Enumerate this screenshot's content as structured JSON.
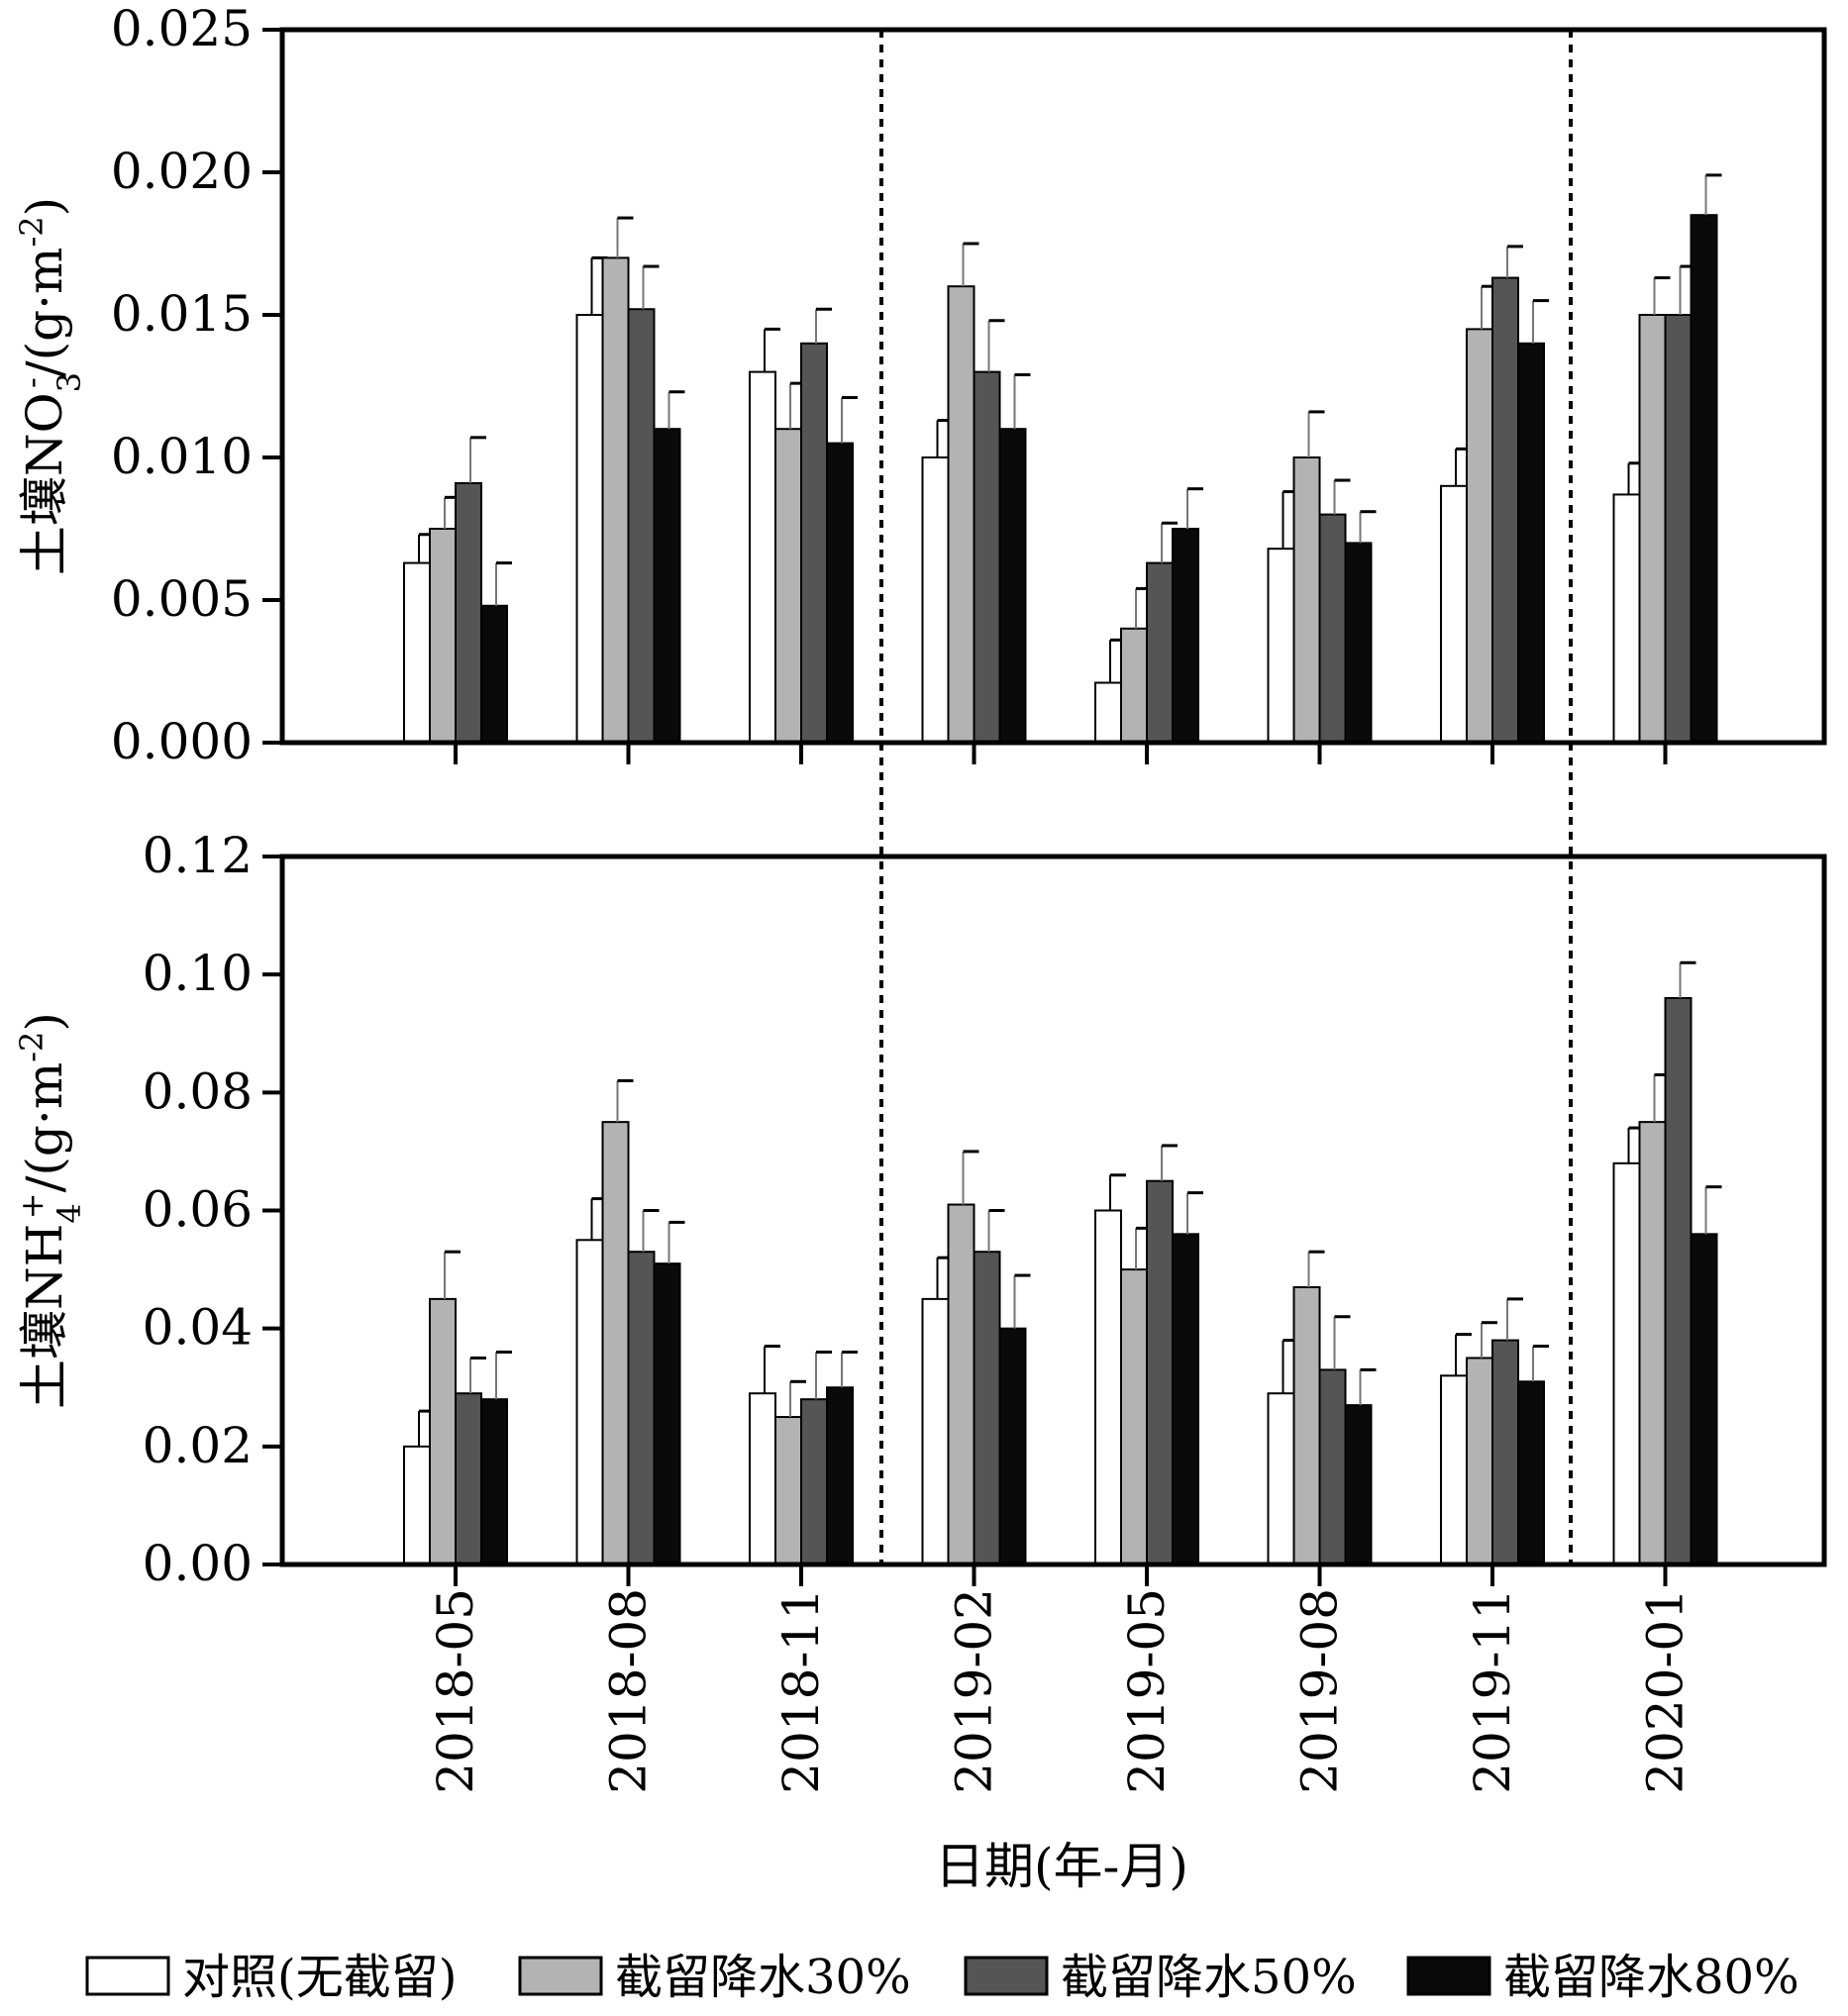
{
  "chart_data": [
    {
      "type": "bar",
      "ylabel": "土壤NO₃⁻/(g·m⁻²)",
      "ylabel_parts": {
        "prefix": "土壤NO",
        "sub": "3",
        "sup": "-",
        "suffix": "/(g·m",
        "unit_sup": "-2",
        "close": ")"
      },
      "ylim": [
        0,
        0.025
      ],
      "yticks": [
        "0.000",
        "0.005",
        "0.010",
        "0.015",
        "0.020",
        "0.025"
      ],
      "categories": [
        "2018-05",
        "2018-08",
        "2018-11",
        "2019-02",
        "2019-05",
        "2019-08",
        "2019-11",
        "2020-01"
      ],
      "series": [
        {
          "name": "对照(无截留)",
          "values": [
            0.0063,
            0.015,
            0.013,
            0.01,
            0.0021,
            0.0068,
            0.009,
            0.0087
          ],
          "errors": [
            0.001,
            0.002,
            0.0015,
            0.0013,
            0.0015,
            0.002,
            0.0013,
            0.0011
          ]
        },
        {
          "name": "截留降水30%",
          "values": [
            0.0075,
            0.017,
            0.011,
            0.016,
            0.004,
            0.01,
            0.0145,
            0.015
          ],
          "errors": [
            0.0011,
            0.0014,
            0.0016,
            0.0015,
            0.0014,
            0.0016,
            0.0015,
            0.0013
          ]
        },
        {
          "name": "截留降水50%",
          "values": [
            0.0091,
            0.0152,
            0.014,
            0.013,
            0.0063,
            0.008,
            0.0163,
            0.015
          ],
          "errors": [
            0.0016,
            0.0015,
            0.0012,
            0.0018,
            0.0014,
            0.0012,
            0.0011,
            0.0017
          ]
        },
        {
          "name": "截留降水80%",
          "values": [
            0.0048,
            0.011,
            0.0105,
            0.011,
            0.0075,
            0.007,
            0.014,
            0.0185
          ],
          "errors": [
            0.0015,
            0.0013,
            0.0016,
            0.0019,
            0.0014,
            0.0011,
            0.0015,
            0.0014
          ]
        }
      ],
      "dividers_after": [
        "2018-11",
        "2019-11"
      ]
    },
    {
      "type": "bar",
      "ylabel": "土壤NH₄⁺/(g·m⁻²)",
      "ylabel_parts": {
        "prefix": "土壤NH",
        "sub": "4",
        "sup": "+",
        "suffix": "/(g·m",
        "unit_sup": "-2",
        "close": ")"
      },
      "ylim": [
        0,
        0.12
      ],
      "yticks": [
        "0.00",
        "0.02",
        "0.04",
        "0.06",
        "0.08",
        "0.10",
        "0.12"
      ],
      "xlabel": "日期(年-月)",
      "categories": [
        "2018-05",
        "2018-08",
        "2018-11",
        "2019-02",
        "2019-05",
        "2019-08",
        "2019-11",
        "2020-01"
      ],
      "series": [
        {
          "name": "对照(无截留)",
          "values": [
            0.02,
            0.055,
            0.029,
            0.045,
            0.06,
            0.029,
            0.032,
            0.068
          ],
          "errors": [
            0.006,
            0.007,
            0.008,
            0.007,
            0.006,
            0.009,
            0.007,
            0.006
          ]
        },
        {
          "name": "截留降水30%",
          "values": [
            0.045,
            0.075,
            0.025,
            0.061,
            0.05,
            0.047,
            0.035,
            0.075
          ],
          "errors": [
            0.008,
            0.007,
            0.006,
            0.009,
            0.007,
            0.006,
            0.006,
            0.008
          ]
        },
        {
          "name": "截留降水50%",
          "values": [
            0.029,
            0.053,
            0.028,
            0.053,
            0.065,
            0.033,
            0.038,
            0.096
          ],
          "errors": [
            0.006,
            0.007,
            0.008,
            0.007,
            0.006,
            0.009,
            0.007,
            0.006
          ]
        },
        {
          "name": "截留降水80%",
          "values": [
            0.028,
            0.051,
            0.03,
            0.04,
            0.056,
            0.027,
            0.031,
            0.056
          ],
          "errors": [
            0.008,
            0.007,
            0.006,
            0.009,
            0.007,
            0.006,
            0.006,
            0.008
          ]
        }
      ],
      "dividers_after": [
        "2018-11",
        "2019-11"
      ]
    }
  ],
  "legend": [
    {
      "label": "对照(无截留)",
      "color": "#ffffff"
    },
    {
      "label": "截留降水30%",
      "color": "#b3b3b3"
    },
    {
      "label": "截留降水50%",
      "color": "#555555"
    },
    {
      "label": "截留降水80%",
      "color": "#0a0a0a"
    }
  ],
  "colors": {
    "control": "#ffffff",
    "rain30": "#b3b3b3",
    "rain50": "#555555",
    "rain80": "#0a0a0a",
    "stroke": "#000000"
  }
}
